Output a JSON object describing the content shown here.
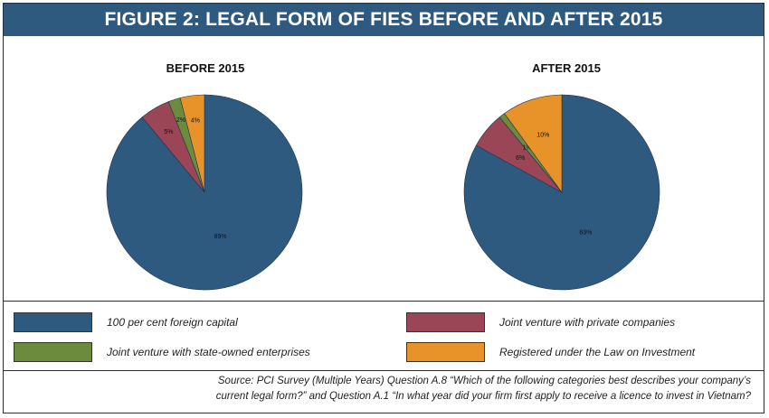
{
  "figure_title": "FIGURE 2: LEGAL FORM OF FIES BEFORE AND AFTER 2015",
  "colors": {
    "foreign": "#2f5a80",
    "private_jv": "#9a4657",
    "state_jv": "#6d8b3d",
    "law_investment": "#e8922a"
  },
  "chart_data": [
    {
      "type": "pie",
      "title": "BEFORE 2015",
      "slices": [
        {
          "label": "100 per cent foreign capital",
          "value": 89,
          "text": "89%"
        },
        {
          "label": "Joint venture with private companies",
          "value": 5,
          "text": "5%"
        },
        {
          "label": "Joint venture with state-owned enterprises",
          "value": 2,
          "text": "2%"
        },
        {
          "label": "Registered under the Law on Investment",
          "value": 4,
          "text": "4%"
        }
      ]
    },
    {
      "type": "pie",
      "title": "AFTER 2015",
      "slices": [
        {
          "label": "100 per cent foreign capital",
          "value": 83,
          "text": "83%"
        },
        {
          "label": "Joint venture with private companies",
          "value": 6,
          "text": "6%"
        },
        {
          "label": "Joint venture with state-owned enterprises",
          "value": 1,
          "text": "1%"
        },
        {
          "label": "Registered under the Law on Investment",
          "value": 10,
          "text": "10%"
        }
      ]
    }
  ],
  "legend": [
    {
      "label": "100 per cent foreign capital",
      "color": "#2f5a80"
    },
    {
      "label": "Joint venture with private companies",
      "color": "#9a4657"
    },
    {
      "label": "Joint venture with state-owned enterprises",
      "color": "#6d8b3d"
    },
    {
      "label": "Registered under the Law on Investment",
      "color": "#e8922a"
    }
  ],
  "source_line1": "Source: PCI Survey (Multiple Years) Question A.8 “Which of the following categories best describes your company’s",
  "source_line2": "current legal form?” and Question A.1 “In what year did your firm first apply to receive a licence to invest in Vietnam?"
}
